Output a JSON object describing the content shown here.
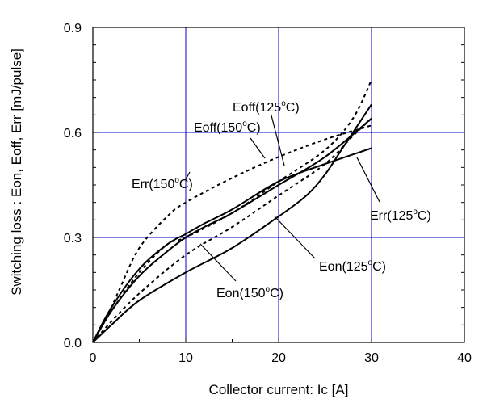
{
  "chart_data": {
    "type": "line",
    "xlabel": "Collector current: Ic [A]",
    "ylabel": "Switching loss  : Eon, Eoff, Err  [mJ/pulse]",
    "xlim": [
      0,
      40
    ],
    "ylim": [
      0,
      0.9
    ],
    "x_ticks": [
      "0",
      "10",
      "20",
      "30",
      "40"
    ],
    "y_ticks": [
      "0.0",
      "0.3",
      "0.6",
      "0.9"
    ],
    "grid": true,
    "grid_color": "#0000cc",
    "series": [
      {
        "name": "Eon(125°C)",
        "style": "solid",
        "x": [
          0,
          2,
          5,
          10,
          15,
          20,
          23,
          25,
          27,
          30
        ],
        "y": [
          0,
          0.05,
          0.12,
          0.2,
          0.27,
          0.36,
          0.42,
          0.48,
          0.56,
          0.68
        ]
      },
      {
        "name": "Eon(150°C)",
        "style": "dashed",
        "x": [
          0,
          2,
          5,
          10,
          15,
          20,
          25,
          28,
          30
        ],
        "y": [
          0,
          0.06,
          0.14,
          0.25,
          0.33,
          0.42,
          0.51,
          0.59,
          0.64
        ]
      },
      {
        "name": "Eoff(125°C)",
        "style": "solid",
        "x": [
          0,
          2,
          5,
          8,
          10,
          12,
          15,
          20,
          25,
          30
        ],
        "y": [
          0,
          0.09,
          0.19,
          0.26,
          0.3,
          0.33,
          0.37,
          0.45,
          0.53,
          0.64
        ]
      },
      {
        "name": "Eoff(150°C)",
        "style": "dashed",
        "x": [
          0,
          2,
          5,
          8,
          10,
          15,
          20,
          25,
          28,
          30
        ],
        "y": [
          0,
          0.09,
          0.2,
          0.28,
          0.3,
          0.37,
          0.46,
          0.55,
          0.64,
          0.75
        ]
      },
      {
        "name": "Err(125°C)",
        "style": "solid",
        "x": [
          0,
          2,
          5,
          8,
          10,
          12,
          15,
          20,
          25,
          30
        ],
        "y": [
          0,
          0.1,
          0.21,
          0.28,
          0.31,
          0.34,
          0.38,
          0.46,
          0.51,
          0.555
        ]
      },
      {
        "name": "Err(150°C)",
        "style": "dashed",
        "x": [
          0,
          1,
          2,
          3,
          5,
          8,
          10,
          15,
          20,
          25,
          30
        ],
        "y": [
          0,
          0.05,
          0.1,
          0.16,
          0.27,
          0.36,
          0.4,
          0.47,
          0.53,
          0.58,
          0.62
        ]
      }
    ],
    "annotations": [
      {
        "text": "Eoff(125",
        "sup": "o",
        "after": "C)"
      },
      {
        "text": "Eoff(150",
        "sup": "o",
        "after": "C)"
      },
      {
        "text": "Err(150",
        "sup": "o",
        "after": "C)"
      },
      {
        "text": "Err(125",
        "sup": "o",
        "after": "C)"
      },
      {
        "text": "Eon(125",
        "sup": "o",
        "after": "C)"
      },
      {
        "text": "Eon(150",
        "sup": "o",
        "after": "C)"
      }
    ]
  }
}
